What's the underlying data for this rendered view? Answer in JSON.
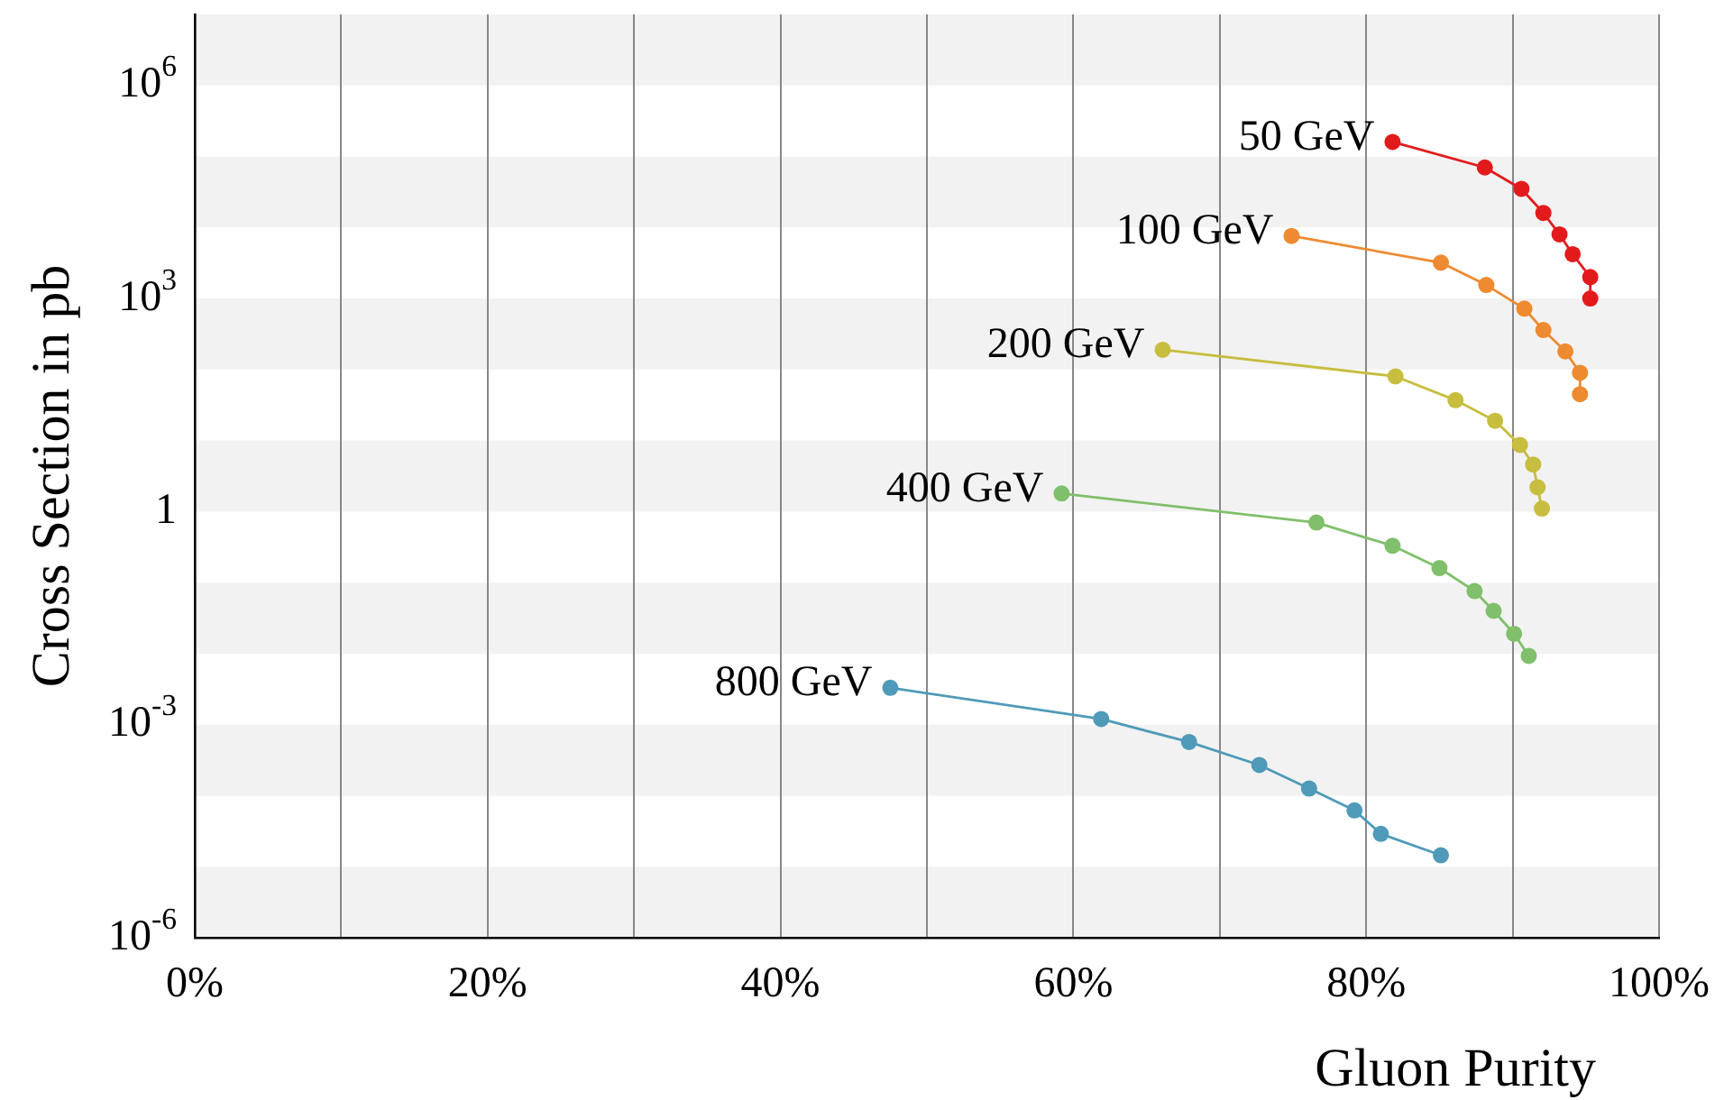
{
  "chart_data": {
    "type": "line",
    "xlabel": "Gluon Purity",
    "ylabel": "Cross Section in pb",
    "log": "y",
    "grid": "x",
    "legend": false,
    "marker": "circle",
    "xlim": [
      0,
      100
    ],
    "ylim": [
      1e-06,
      10000000.0
    ],
    "xticks": [
      {
        "value": 0,
        "label": "0%"
      },
      {
        "value": 10,
        "label": null
      },
      {
        "value": 20,
        "label": "20%"
      },
      {
        "value": 30,
        "label": null
      },
      {
        "value": 40,
        "label": "40%"
      },
      {
        "value": 50,
        "label": null
      },
      {
        "value": 60,
        "label": "60%"
      },
      {
        "value": 70,
        "label": null
      },
      {
        "value": 80,
        "label": "80%"
      },
      {
        "value": 90,
        "label": null
      },
      {
        "value": 100,
        "label": "100%"
      }
    ],
    "yticks": [
      {
        "value": 1e-06,
        "label": "10$^{-6}$"
      },
      {
        "value": 0.001,
        "label": "10$^{-3}$"
      },
      1,
      {
        "value": 1000,
        "label": "10$^{3}$"
      },
      {
        "value": 1000000.0,
        "label": "10$^{6}$"
      }
    ],
    "bands": [
      {
        "axis": "y",
        "from": 1000000.0,
        "to": 10000000.0,
        "color": "#f2f2f2"
      },
      {
        "axis": "y",
        "from": 10000.0,
        "to": 100000.0,
        "color": "#f2f2f2"
      },
      {
        "axis": "y",
        "from": 100,
        "to": 1000,
        "color": "#f2f2f2"
      },
      {
        "axis": "y",
        "from": 1,
        "to": 10,
        "color": "#f2f2f2"
      },
      {
        "axis": "y",
        "from": 0.01,
        "to": 0.1,
        "color": "#f2f2f2"
      },
      {
        "axis": "y",
        "from": 0.0001,
        "to": 0.001,
        "color": "#f2f2f2"
      },
      {
        "axis": "y",
        "from": 1e-06,
        "to": 1e-05,
        "color": "#f2f2f2"
      }
    ],
    "series": [
      {
        "name": "50 GeV",
        "color": "#e31a1c",
        "x": [
          81.8,
          88.1,
          90.6,
          92.1,
          93.2,
          94.1,
          95.3,
          95.3
        ],
        "values": [
          160000,
          70000,
          35000,
          16000,
          8000,
          4200,
          2000,
          1000
        ]
      },
      {
        "name": "100 GeV",
        "color": "#ee8a30",
        "x": [
          74.9,
          85.1,
          88.2,
          90.8,
          92.1,
          93.6,
          94.6,
          94.6
        ],
        "values": [
          7600,
          3200,
          1550,
          720,
          360,
          180,
          90,
          45
        ]
      },
      {
        "name": "200 GeV",
        "color": "#c7bd3e",
        "x": [
          66.1,
          82.0,
          86.1,
          88.8,
          90.5,
          91.4,
          91.7,
          92.0
        ],
        "values": [
          190,
          80,
          37,
          19,
          8.7,
          4.6,
          2.2,
          1.1
        ]
      },
      {
        "name": "400 GeV",
        "color": "#80bf6b",
        "x": [
          59.2,
          76.6,
          81.8,
          85.0,
          87.4,
          88.7,
          90.1,
          91.1
        ],
        "values": [
          1.8,
          0.7,
          0.33,
          0.16,
          0.076,
          0.04,
          0.019,
          0.0093
        ]
      },
      {
        "name": "800 GeV",
        "color": "#4f9ab8",
        "x": [
          47.5,
          61.9,
          67.9,
          72.7,
          76.1,
          79.2,
          81.0,
          85.1
        ],
        "values": [
          0.0033,
          0.0012,
          0.00057,
          0.00027,
          0.000126,
          6.2e-05,
          2.9e-05,
          1.45e-05
        ]
      }
    ]
  }
}
